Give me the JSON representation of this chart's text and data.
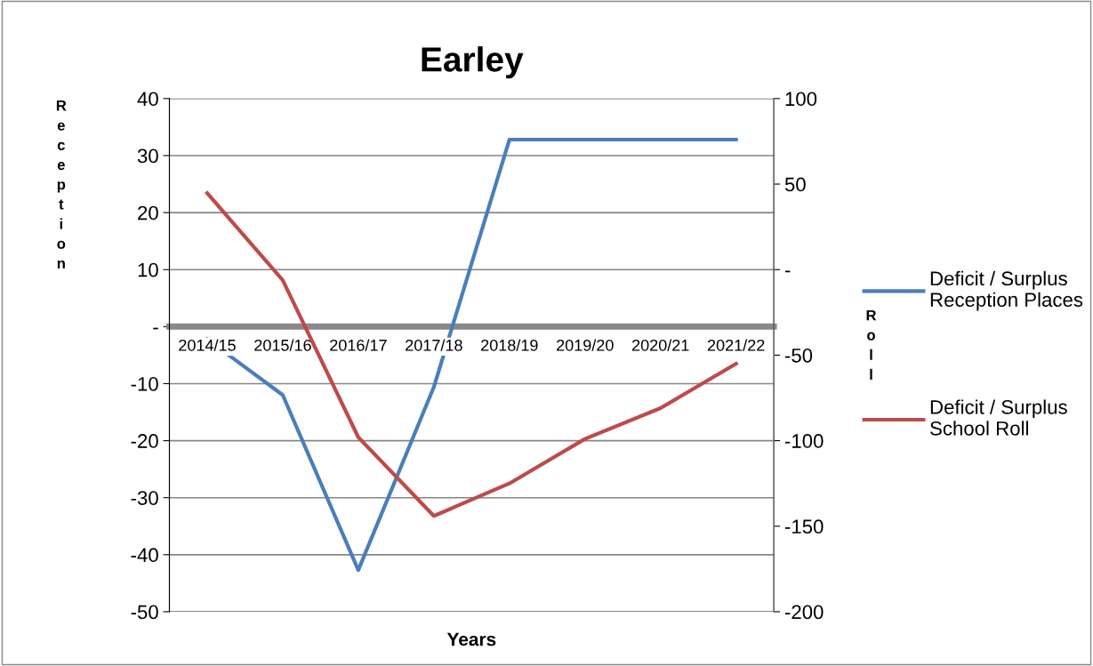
{
  "chart_data": {
    "type": "line",
    "title": "Earley",
    "xlabel": "Years",
    "ylabel": "Reception",
    "y2label": "Roll",
    "categories": [
      "2014/15",
      "2015/16",
      "2016/17",
      "2017/18",
      "2018/19",
      "2019/20",
      "2020/21",
      "2021/22"
    ],
    "series": [
      {
        "name": "Deficit / Surplus\nReception Places",
        "color": "#4a7ebb",
        "values": [
          -2.2,
          -12,
          -42.7,
          -10.6,
          32.8,
          32.8,
          32.8,
          32.8
        ]
      },
      {
        "name": "Deficit / Surplus\nSchool Roll",
        "color": "#be4b48",
        "axis": "y2",
        "values": [
          44.7,
          -6.2,
          -98,
          -144,
          -125,
          -99,
          -81,
          -55
        ]
      }
    ],
    "ylim": [
      -50,
      40
    ],
    "yticks": [
      -50,
      -40,
      -30,
      -20,
      -10,
      {
        "value": 0,
        "label": "-"
      },
      10,
      20,
      30,
      40
    ],
    "y2lim": [
      -200,
      100
    ],
    "y2ticks": [
      -200,
      -150,
      -100,
      -50,
      {
        "value": 0,
        "label": "-"
      },
      50,
      100
    ],
    "grid": "y",
    "legend": "right",
    "marker": "none",
    "line_style": "solid"
  }
}
